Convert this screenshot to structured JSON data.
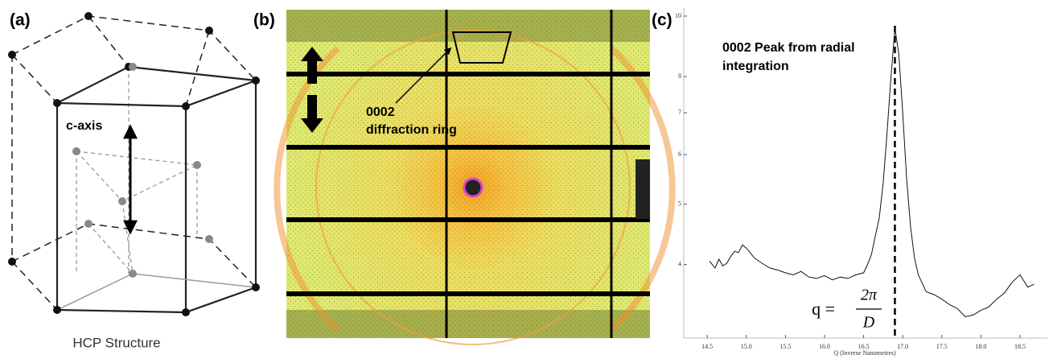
{
  "panels": {
    "a": {
      "label": "(a)",
      "axis_label": "c-axis",
      "caption": "HCP Structure"
    },
    "b": {
      "label": "(b)",
      "annotation": [
        "0002",
        "diffraction ring"
      ]
    }
  },
  "chart_data": {
    "type": "line",
    "panel_label": "(c)",
    "annotation": [
      "0002 Peak from radial",
      "integration"
    ],
    "formula": {
      "lhs": "q =",
      "numerator": "2π",
      "denominator": "D"
    },
    "x_label": "Q (Inverse Nanometres)",
    "x": [
      14.53,
      14.6,
      14.65,
      14.7,
      14.75,
      14.8,
      14.85,
      14.9,
      14.95,
      15.0,
      15.05,
      15.1,
      15.2,
      15.3,
      15.4,
      15.5,
      15.6,
      15.7,
      15.8,
      15.9,
      16.0,
      16.1,
      16.2,
      16.3,
      16.4,
      16.5,
      16.55,
      16.6,
      16.65,
      16.7,
      16.75,
      16.8,
      16.85,
      16.9,
      16.95,
      17.0,
      17.05,
      17.1,
      17.15,
      17.2,
      17.3,
      17.4,
      17.5,
      17.6,
      17.7,
      17.8,
      17.9,
      18.0,
      18.1,
      18.2,
      18.3,
      18.4,
      18.5,
      18.6,
      18.68
    ],
    "values": [
      4.05,
      3.95,
      4.08,
      3.98,
      4.02,
      4.12,
      4.2,
      4.18,
      4.3,
      4.25,
      4.18,
      4.1,
      4.02,
      3.95,
      3.92,
      3.88,
      3.85,
      3.9,
      3.82,
      3.8,
      3.84,
      3.78,
      3.82,
      3.8,
      3.85,
      3.88,
      4.0,
      4.15,
      4.45,
      4.75,
      5.4,
      6.5,
      8.0,
      9.55,
      8.7,
      7.0,
      5.5,
      4.6,
      4.1,
      3.85,
      3.62,
      3.58,
      3.52,
      3.45,
      3.4,
      3.3,
      3.32,
      3.38,
      3.42,
      3.52,
      3.6,
      3.75,
      3.85,
      3.68,
      3.72
    ],
    "color": "#111111",
    "peak_line_x": 16.9,
    "xlim": [
      14.2,
      18.85
    ],
    "xticks": [
      14.5,
      {
        "value": 15,
        "label": "15.0"
      },
      15.5,
      {
        "value": 16,
        "label": "16.0"
      },
      16.5,
      {
        "value": 17,
        "label": "17.0"
      },
      17.5,
      {
        "value": 18,
        "label": "18.0"
      },
      18.5
    ],
    "ylim": [
      3.05,
      10.3
    ],
    "yticks": [
      4,
      5,
      6,
      7,
      8,
      10
    ],
    "log_y": true
  }
}
